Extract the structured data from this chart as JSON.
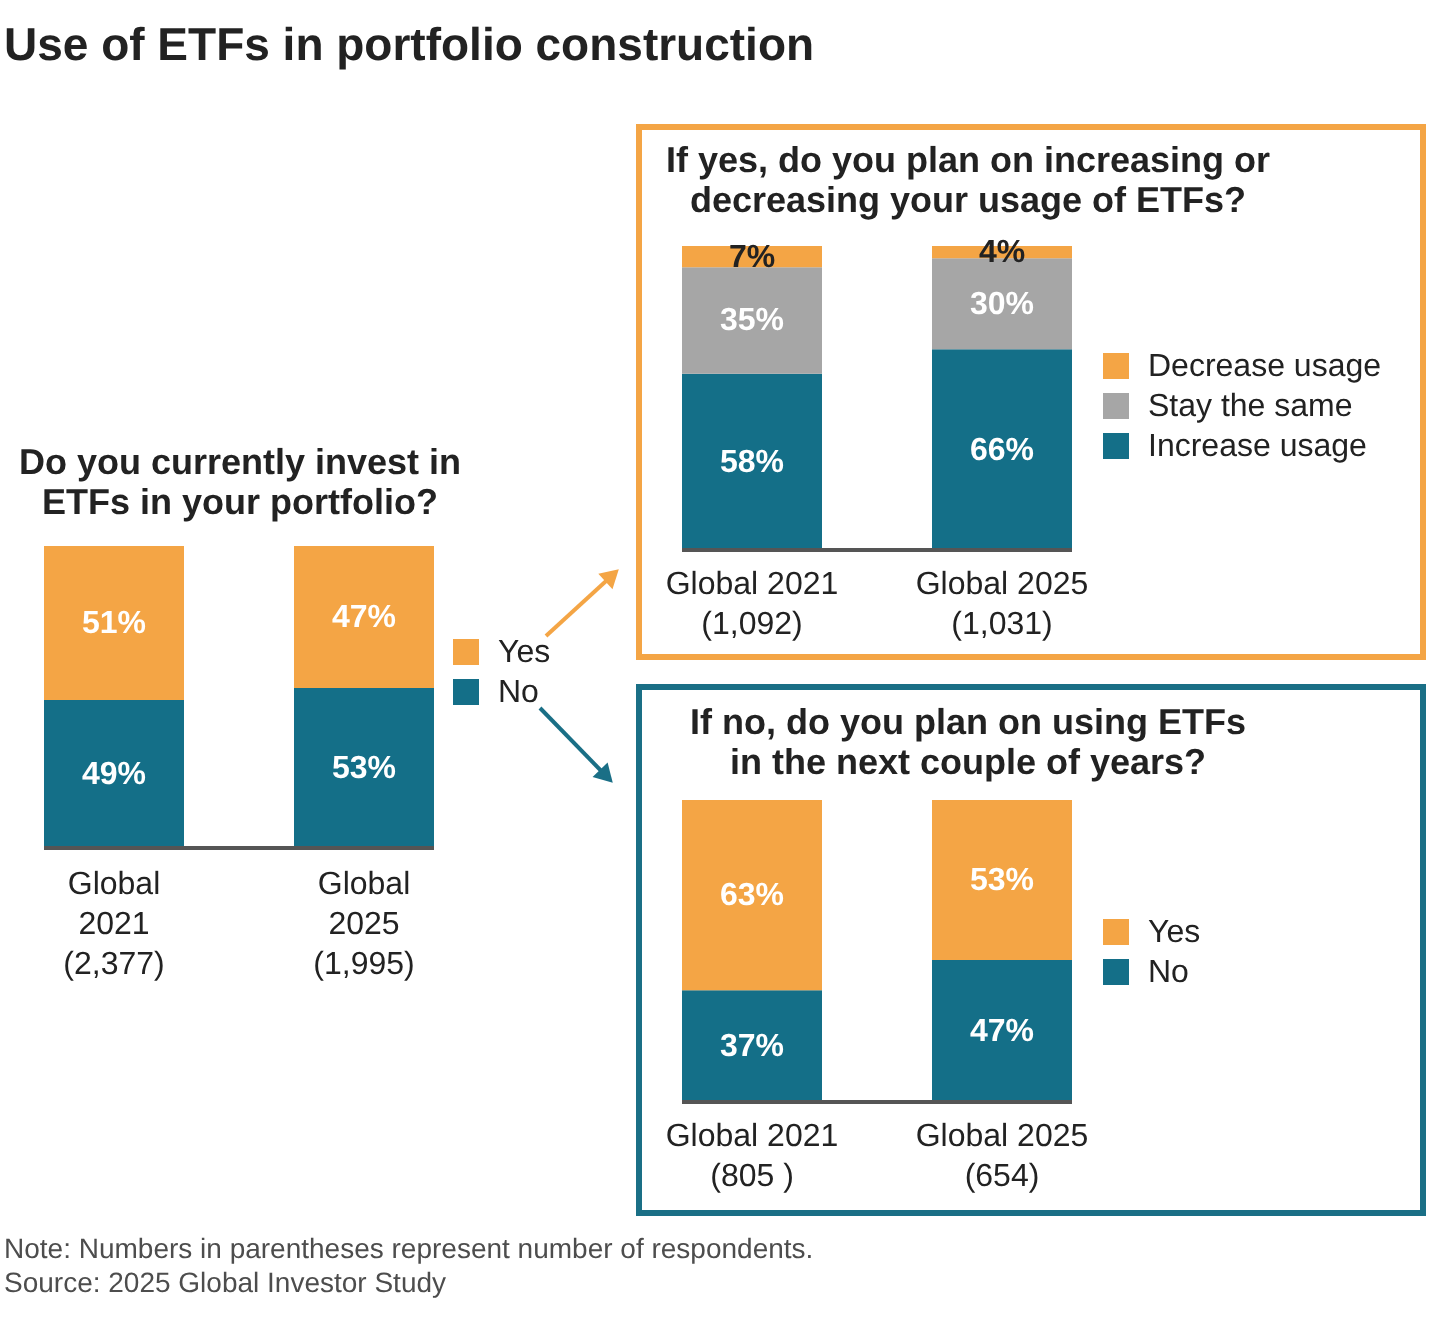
{
  "chart_data": [
    {
      "type": "bar",
      "title": "Use of ETFs in portfolio construction",
      "subtitle": "Do you currently invest in\nETFs in your portfolio?",
      "categories": [
        "Global\n2021\n(2,377)",
        "Global\n2025\n(1,995)"
      ],
      "stacked": true,
      "legend": "right",
      "series": [
        {
          "name": "No",
          "color": "#146f88",
          "values": [
            49,
            53
          ],
          "value_labels": [
            "49%",
            "53%"
          ]
        },
        {
          "name": "Yes",
          "color": "#f4a545",
          "values": [
            51,
            47
          ],
          "value_labels": [
            "51%",
            "47%"
          ]
        }
      ],
      "annotations": [
        "Note: Numbers in parentheses represent number of respondents.",
        "Source: 2025 Global Investor Study"
      ]
    },
    {
      "type": "bar",
      "title": "If yes, do you plan on increasing or\ndecreasing your usage of ETFs?",
      "categories": [
        "Global 2021\n(1,092)",
        "Global 2025\n(1,031)"
      ],
      "stacked": true,
      "legend": "right",
      "series": [
        {
          "name": "Increase usage",
          "color": "#146f88",
          "values": [
            58,
            66
          ],
          "value_labels": [
            "58%",
            "66%"
          ]
        },
        {
          "name": "Stay the same",
          "color": "#a6a6a6",
          "values": [
            35,
            30
          ],
          "value_labels": [
            "35%",
            "30%"
          ]
        },
        {
          "name": "Decrease usage",
          "color": "#f4a545",
          "values": [
            7,
            4
          ],
          "value_labels": [
            "7%",
            "4%"
          ]
        }
      ]
    },
    {
      "type": "bar",
      "title": "If no, do you plan on using ETFs\nin the next couple of years?",
      "categories": [
        "Global 2021\n(805 )",
        "Global 2025\n(654)"
      ],
      "stacked": true,
      "legend": "right",
      "series": [
        {
          "name": "No",
          "color": "#146f88",
          "values": [
            37,
            47
          ],
          "value_labels": [
            "37%",
            "47%"
          ]
        },
        {
          "name": "Yes",
          "color": "#f4a545",
          "values": [
            63,
            53
          ],
          "value_labels": [
            "63%",
            "53%"
          ]
        }
      ]
    }
  ]
}
